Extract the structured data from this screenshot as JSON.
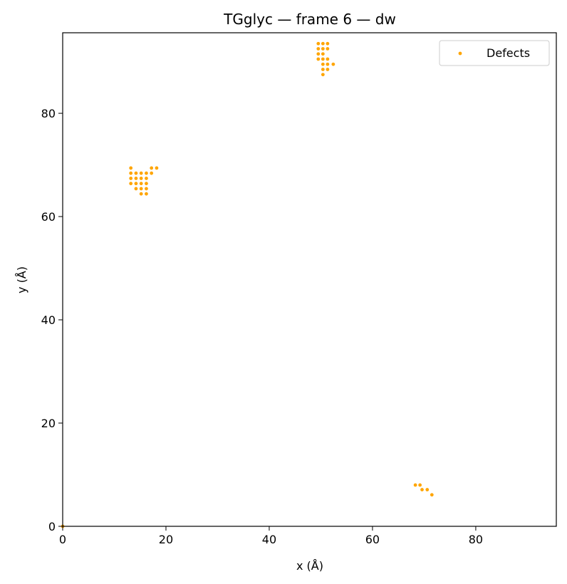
{
  "chart_data": {
    "type": "scatter",
    "title": "TGglyc — frame 6 — dw",
    "xlabel": "x (Å)",
    "ylabel": "y (Å)",
    "xlim": [
      0,
      95.6
    ],
    "ylim": [
      0,
      95.6
    ],
    "xticks": [
      0,
      20,
      40,
      60,
      80
    ],
    "yticks": [
      0,
      20,
      40,
      60,
      80
    ],
    "grid": false,
    "legend_position": "top-right",
    "series": [
      {
        "name": "Defects",
        "color": "#FFA500",
        "points": [
          [
            0,
            0
          ],
          [
            13.2,
            69.4
          ],
          [
            13.2,
            68.4
          ],
          [
            13.2,
            67.4
          ],
          [
            13.2,
            66.4
          ],
          [
            14.2,
            68.4
          ],
          [
            14.2,
            67.4
          ],
          [
            14.2,
            66.4
          ],
          [
            14.2,
            65.4
          ],
          [
            15.2,
            68.4
          ],
          [
            15.2,
            67.4
          ],
          [
            15.2,
            66.4
          ],
          [
            15.2,
            65.4
          ],
          [
            15.2,
            64.4
          ],
          [
            16.2,
            68.4
          ],
          [
            16.2,
            67.4
          ],
          [
            16.2,
            66.4
          ],
          [
            16.2,
            65.4
          ],
          [
            16.2,
            64.4
          ],
          [
            17.2,
            69.4
          ],
          [
            17.2,
            68.4
          ],
          [
            18.2,
            69.4
          ],
          [
            49.5,
            93.5
          ],
          [
            49.5,
            92.5
          ],
          [
            49.5,
            91.5
          ],
          [
            49.5,
            90.5
          ],
          [
            50.4,
            93.5
          ],
          [
            50.4,
            92.5
          ],
          [
            50.4,
            91.5
          ],
          [
            50.4,
            90.5
          ],
          [
            50.4,
            89.5
          ],
          [
            50.4,
            88.5
          ],
          [
            50.4,
            87.5
          ],
          [
            51.3,
            93.5
          ],
          [
            51.3,
            92.5
          ],
          [
            51.3,
            90.5
          ],
          [
            51.3,
            89.5
          ],
          [
            51.3,
            88.5
          ],
          [
            52.4,
            89.5
          ],
          [
            68.3,
            8.0
          ],
          [
            69.2,
            8.0
          ],
          [
            69.6,
            7.1
          ],
          [
            70.6,
            7.1
          ],
          [
            71.5,
            6.1
          ]
        ]
      }
    ]
  }
}
